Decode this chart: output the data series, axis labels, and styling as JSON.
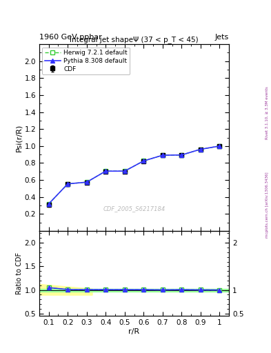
{
  "title_top": "1960 GeV ppbar",
  "title_right": "Jets",
  "main_title": "Integral jet shapeΨ (37 < p_T < 45)",
  "ylabel_main": "Psi(r/R)",
  "ylabel_ratio": "Ratio to CDF",
  "xlabel": "r/R",
  "watermark": "CDF_2005_S6217184",
  "right_label": "mcplots.cern.ch [arXiv:1306.3436]",
  "right_label2": "Rivet 3.1.10, ≥ 3.3M events",
  "x_data": [
    0.1,
    0.2,
    0.3,
    0.4,
    0.5,
    0.6,
    0.7,
    0.8,
    0.9,
    1.0
  ],
  "cdf_y": [
    0.305,
    0.55,
    0.57,
    0.7,
    0.7,
    0.82,
    0.89,
    0.89,
    0.96,
    1.0
  ],
  "cdf_yerr": [
    0.02,
    0.02,
    0.02,
    0.02,
    0.015,
    0.015,
    0.01,
    0.01,
    0.008,
    0.005
  ],
  "herwig_y": [
    0.32,
    0.555,
    0.575,
    0.705,
    0.705,
    0.825,
    0.892,
    0.895,
    0.962,
    1.0
  ],
  "pythia_y": [
    0.32,
    0.555,
    0.575,
    0.705,
    0.705,
    0.825,
    0.892,
    0.895,
    0.962,
    1.0
  ],
  "ratio_herwig": [
    1.05,
    1.01,
    1.009,
    1.007,
    1.007,
    1.006,
    1.002,
    1.006,
    1.002,
    1.0
  ],
  "ratio_pythia": [
    1.05,
    1.01,
    1.009,
    1.007,
    1.007,
    1.006,
    1.002,
    1.006,
    1.002,
    1.0
  ],
  "color_cdf": "#000000",
  "color_herwig": "#33cc33",
  "color_pythia": "#3333ff",
  "color_yellow": "#ffff99",
  "color_green": "#99ff99",
  "xlim": [
    0.05,
    1.05
  ],
  "ylim_main": [
    0.0,
    2.2
  ],
  "ylim_ratio": [
    0.45,
    2.25
  ],
  "yticks_main": [
    0.2,
    0.4,
    0.6,
    0.8,
    1.0,
    1.2,
    1.4,
    1.6,
    1.8,
    2.0
  ],
  "yticks_ratio_left": [
    0.5,
    1.0,
    1.5,
    2.0
  ],
  "yticks_ratio_right": [
    0.5,
    1.0,
    2.0
  ],
  "ytick_labels_ratio_right": [
    "0.5",
    "1",
    "2"
  ],
  "xticks": [
    0.1,
    0.2,
    0.3,
    0.4,
    0.5,
    0.6,
    0.7,
    0.8,
    0.9,
    1.0
  ],
  "xticklabels": [
    "0.1",
    "0.2",
    "0.3",
    "0.4",
    "0.5",
    "0.6",
    "0.7",
    "0.8",
    "0.9",
    "1"
  ]
}
